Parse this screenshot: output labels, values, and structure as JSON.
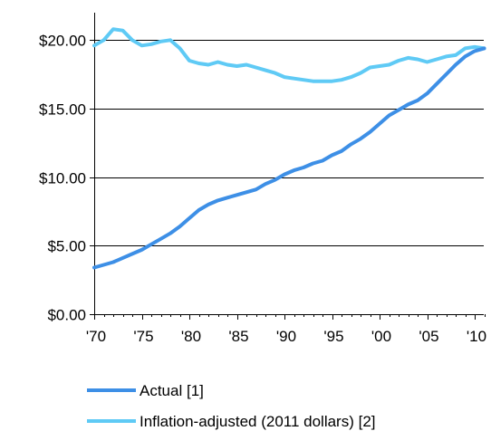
{
  "chart_data": {
    "type": "line",
    "title": "",
    "xlabel": "",
    "ylabel": "",
    "xlim": [
      1970,
      2011
    ],
    "ylim": [
      0,
      22
    ],
    "y_ticks": [
      0,
      5,
      10,
      15,
      20
    ],
    "y_tick_labels": [
      "$0.00",
      "$5.00",
      "$10.00",
      "$15.00",
      "$20.00"
    ],
    "x_ticks": [
      1970,
      1975,
      1980,
      1985,
      1990,
      1995,
      2000,
      2005,
      2010
    ],
    "x_tick_labels": [
      "'70",
      "'75",
      "'80",
      "'85",
      "'90",
      "'95",
      "'00",
      "'05",
      "'10"
    ],
    "grid": "horizontal",
    "legend_position": "bottom",
    "x": [
      1970,
      1971,
      1972,
      1973,
      1974,
      1975,
      1976,
      1977,
      1978,
      1979,
      1980,
      1981,
      1982,
      1983,
      1984,
      1985,
      1986,
      1987,
      1988,
      1989,
      1990,
      1991,
      1992,
      1993,
      1994,
      1995,
      1996,
      1997,
      1998,
      1999,
      2000,
      2001,
      2002,
      2003,
      2004,
      2005,
      2006,
      2007,
      2008,
      2009,
      2010,
      2011
    ],
    "series": [
      {
        "name": "Actual [1]",
        "color": "#3d8fe6",
        "values": [
          3.4,
          3.6,
          3.8,
          4.1,
          4.4,
          4.7,
          5.1,
          5.5,
          5.9,
          6.4,
          7.0,
          7.6,
          8.0,
          8.3,
          8.5,
          8.7,
          8.9,
          9.1,
          9.5,
          9.8,
          10.2,
          10.5,
          10.7,
          11.0,
          11.2,
          11.6,
          11.9,
          12.4,
          12.8,
          13.3,
          13.9,
          14.5,
          14.9,
          15.3,
          15.6,
          16.1,
          16.8,
          17.5,
          18.2,
          18.8,
          19.2,
          19.4
        ]
      },
      {
        "name": "Inflation-adjusted (2011 dollars) [2]",
        "color": "#5fcaf5",
        "values": [
          19.6,
          20.0,
          20.8,
          20.7,
          20.0,
          19.6,
          19.7,
          19.9,
          20.0,
          19.4,
          18.5,
          18.3,
          18.2,
          18.4,
          18.2,
          18.1,
          18.2,
          18.0,
          17.8,
          17.6,
          17.3,
          17.2,
          17.1,
          17.0,
          17.0,
          17.0,
          17.1,
          17.3,
          17.6,
          18.0,
          18.1,
          18.2,
          18.5,
          18.7,
          18.6,
          18.4,
          18.6,
          18.8,
          18.9,
          19.4,
          19.5,
          19.4
        ]
      }
    ]
  }
}
